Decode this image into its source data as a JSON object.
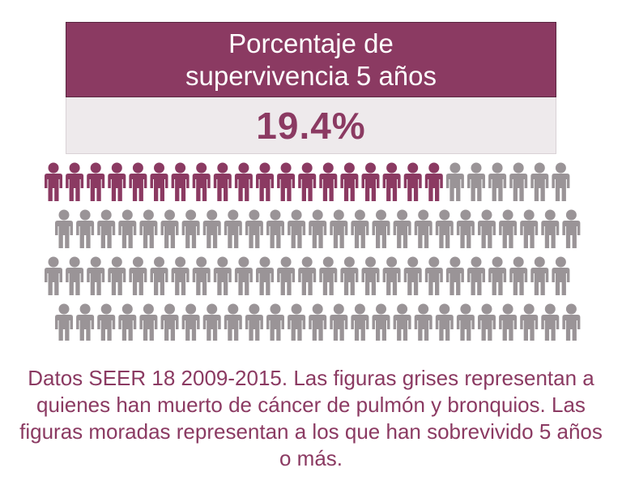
{
  "header": {
    "title": "Porcentaje de supervivencia 5 años",
    "value": "19.4%"
  },
  "chart_data": {
    "type": "pictogram",
    "total_figures": 100,
    "highlighted_figures": 19.4,
    "rows": 4,
    "figures_per_row": 25,
    "categories": [
      "sobrevivido 5 años o más",
      "muerto de cáncer de pulmón y bronquios"
    ],
    "values": [
      19.4,
      80.6
    ],
    "colors": {
      "highlighted": "#8b3a62",
      "other": "#9a9497"
    }
  },
  "caption": "Datos SEER 18 2009-2015. Las figuras grises representan a quienes han muerto de cáncer de pulmón y bronquios. Las figuras moradas representan a los que han sobrevivido 5 años o más."
}
